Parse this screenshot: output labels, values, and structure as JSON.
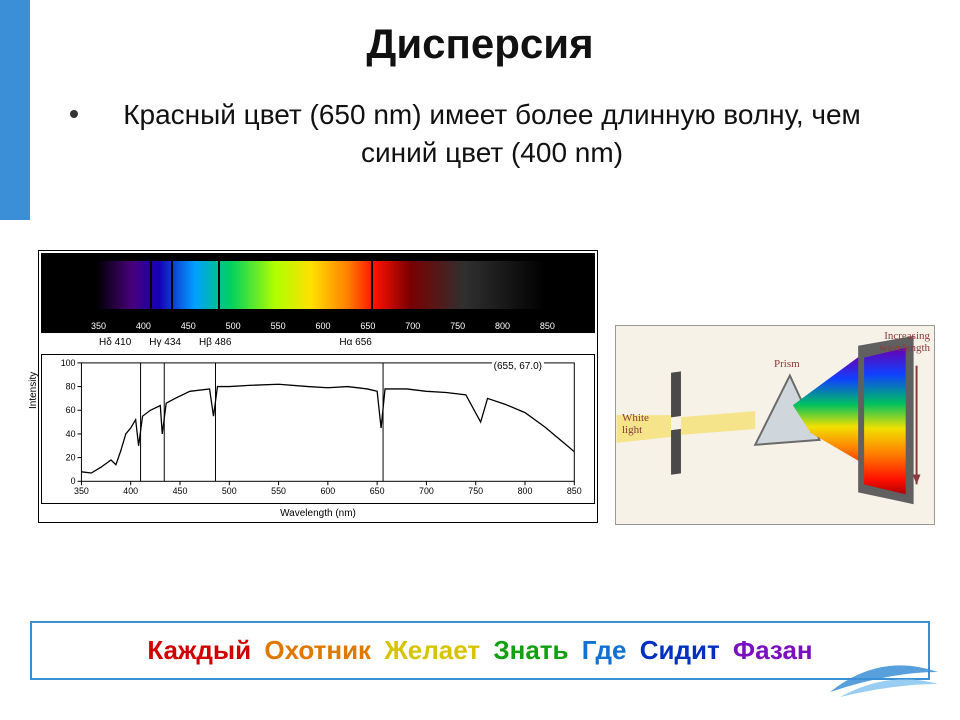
{
  "title": "Дисперсия",
  "bullet": "Красный цвет (650 nm)  имеет более длинную волну, чем синий цвет (400 nm)",
  "spectrum": {
    "xmin": 350,
    "xmax": 850,
    "xtick_step": 50,
    "xticks": [
      "350",
      "400",
      "450",
      "500",
      "550",
      "600",
      "650",
      "700",
      "750",
      "800",
      "850"
    ],
    "gradient_stops": [
      [
        0.0,
        "#000000"
      ],
      [
        0.08,
        "#48007a"
      ],
      [
        0.14,
        "#1500b5"
      ],
      [
        0.22,
        "#00a0ff"
      ],
      [
        0.3,
        "#00d060"
      ],
      [
        0.4,
        "#b0ff00"
      ],
      [
        0.48,
        "#ffe000"
      ],
      [
        0.56,
        "#ff8000"
      ],
      [
        0.62,
        "#ff1000"
      ],
      [
        0.7,
        "#7a0000"
      ],
      [
        0.82,
        "#303030"
      ],
      [
        1.0,
        "#000000"
      ]
    ],
    "line_labels": [
      {
        "text": "Hδ 410",
        "x": 410
      },
      {
        "text": "Hγ 434",
        "x": 434
      },
      {
        "text": "Hβ 486",
        "x": 486
      },
      {
        "text": "Hα 656",
        "x": 656
      }
    ],
    "absorption_lines_nm": [
      410,
      434,
      486,
      656
    ]
  },
  "intensity": {
    "xmin": 350,
    "xmax": 850,
    "ymin": 0,
    "ymax": 100,
    "ytick_step": 20,
    "yticks": [
      "0",
      "20",
      "40",
      "60",
      "80",
      "100"
    ],
    "xticks": [
      "350",
      "400",
      "450",
      "500",
      "550",
      "600",
      "650",
      "700",
      "750",
      "800",
      "850"
    ],
    "ylabel": "Intensity",
    "xlabel": "Wavelength (nm)",
    "coord_readout": "(655, 67.0)",
    "vlines_nm": [
      410,
      434,
      486,
      656
    ],
    "curve": [
      [
        350,
        8
      ],
      [
        360,
        7
      ],
      [
        370,
        12
      ],
      [
        380,
        18
      ],
      [
        385,
        14
      ],
      [
        390,
        26
      ],
      [
        395,
        40
      ],
      [
        400,
        45
      ],
      [
        405,
        52
      ],
      [
        408,
        30
      ],
      [
        412,
        55
      ],
      [
        420,
        60
      ],
      [
        430,
        64
      ],
      [
        432,
        40
      ],
      [
        436,
        66
      ],
      [
        445,
        70
      ],
      [
        460,
        76
      ],
      [
        480,
        78
      ],
      [
        484,
        55
      ],
      [
        488,
        80
      ],
      [
        500,
        80
      ],
      [
        520,
        81
      ],
      [
        550,
        82
      ],
      [
        580,
        80
      ],
      [
        600,
        79
      ],
      [
        620,
        80
      ],
      [
        640,
        78
      ],
      [
        650,
        76
      ],
      [
        654,
        45
      ],
      [
        658,
        78
      ],
      [
        680,
        78
      ],
      [
        700,
        76
      ],
      [
        720,
        75
      ],
      [
        740,
        73
      ],
      [
        755,
        50
      ],
      [
        762,
        70
      ],
      [
        780,
        65
      ],
      [
        800,
        58
      ],
      [
        820,
        46
      ],
      [
        840,
        32
      ],
      [
        850,
        25
      ]
    ]
  },
  "prism": {
    "labels": {
      "white": "White\nlight",
      "prism": "Prism",
      "increasing": "Increasing\nwavelength"
    },
    "spectrum_gradient": [
      [
        0.0,
        "#6a00b0"
      ],
      [
        0.18,
        "#1040ff"
      ],
      [
        0.38,
        "#00c060"
      ],
      [
        0.55,
        "#f0e000"
      ],
      [
        0.72,
        "#ff8000"
      ],
      [
        0.9,
        "#ff1000"
      ],
      [
        1.0,
        "#b00000"
      ]
    ],
    "beam_color": "#f5e48a",
    "prism_fill": "#cfd7dc",
    "prism_stroke": "#6a6a6a",
    "slit_fill": "#4a4a4a",
    "screen_fill": "#5a5a5a",
    "bg": "#f6f2e8"
  },
  "mnemonic": {
    "words": [
      "Каждый",
      "Охотник",
      "Желает",
      "Знать",
      "Где",
      "Сидит",
      "Фазан"
    ],
    "colors": [
      "#d00000",
      "#e07800",
      "#d7c400",
      "#11a011",
      "#1170d0",
      "#0030c0",
      "#7a10c0"
    ]
  },
  "accent_color": "#3b8fd6"
}
